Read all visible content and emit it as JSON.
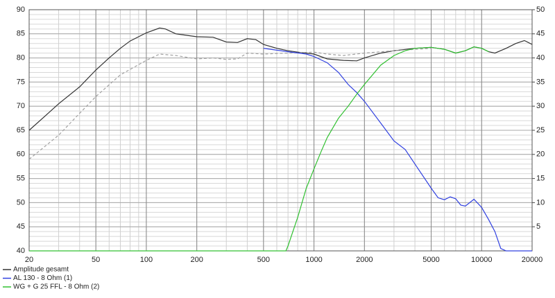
{
  "chart_data": {
    "type": "line",
    "xscale": "log",
    "grid": true,
    "legend": "bottom-left",
    "xlim": [
      20,
      20000
    ],
    "xticks": [
      20,
      50,
      100,
      200,
      500,
      1000,
      2000,
      5000,
      10000,
      20000
    ],
    "ylim": [
      40,
      90
    ],
    "yticks": [
      40,
      45,
      50,
      55,
      60,
      65,
      70,
      75,
      80,
      85,
      90
    ],
    "y2lim": [
      0,
      50
    ],
    "y2ticks": [
      5,
      10,
      15,
      20,
      25,
      30,
      35,
      40,
      45,
      50
    ],
    "series": [
      {
        "name": "Amplitude gesamt",
        "color": "#333333",
        "x": [
          20,
          25,
          30,
          40,
          50,
          60,
          70,
          80,
          100,
          120,
          130,
          150,
          200,
          250,
          300,
          350,
          400,
          450,
          500,
          600,
          700,
          800,
          1000,
          1200,
          1500,
          1800,
          2000,
          2500,
          3000,
          4000,
          5000,
          6000,
          7000,
          8000,
          9000,
          10000,
          11000,
          12000,
          14000,
          16000,
          18000,
          20000
        ],
        "values": [
          65,
          68,
          70.5,
          74,
          77.5,
          80,
          82,
          83.5,
          85.2,
          86.2,
          86,
          85,
          84.4,
          84.3,
          83.3,
          83.2,
          84,
          83.8,
          82.8,
          82,
          81.5,
          81.2,
          80.8,
          79.8,
          79.5,
          79.4,
          80,
          81,
          81.5,
          82,
          82.2,
          81.8,
          81,
          81.5,
          82.3,
          82,
          81.3,
          81,
          82,
          83,
          83.6,
          82.8
        ]
      },
      {
        "color": "#a0a0a0",
        "dashed": true,
        "x": [
          20,
          30,
          40,
          50,
          70,
          100,
          120,
          150,
          200,
          250,
          300,
          350,
          400,
          500,
          700,
          1000,
          1200,
          1500,
          2000,
          3000,
          5000
        ],
        "values": [
          59,
          64,
          68.5,
          72,
          76.5,
          79.5,
          80.8,
          80.5,
          79.8,
          80,
          79.7,
          79.8,
          81,
          80.8,
          81,
          81.2,
          80.8,
          80.5,
          81,
          81.5,
          82
        ]
      },
      {
        "name": "AL 130 - 8 Ohm (1)",
        "color": "#3040e0",
        "x": [
          500,
          700,
          900,
          1000,
          1200,
          1400,
          1600,
          1800,
          2000,
          2500,
          3000,
          3500,
          4000,
          5000,
          5500,
          6000,
          6500,
          7000,
          7500,
          8000,
          9000,
          10000,
          11000,
          12000,
          13000,
          14000,
          20000
        ],
        "values": [
          82,
          81.3,
          80.8,
          80.3,
          79,
          77,
          74.5,
          72.8,
          71,
          66.5,
          62.8,
          61,
          58,
          53,
          51,
          50.6,
          51.2,
          50.8,
          49.5,
          49.3,
          50.7,
          49,
          46.5,
          44,
          40.5,
          40,
          40
        ]
      },
      {
        "name": "WG + G 25 FFL - 8 Ohm (2)",
        "color": "#30c030",
        "x": [
          20,
          680,
          700,
          800,
          900,
          1000,
          1100,
          1200,
          1400,
          1600,
          1800,
          2000,
          2500,
          3000,
          3500,
          4000,
          5000,
          6000,
          7000,
          8000,
          9000,
          10000,
          11000
        ],
        "values": [
          40,
          40,
          41,
          47,
          53,
          57,
          60.5,
          63.5,
          67.5,
          70,
          72.5,
          74.5,
          78.5,
          80.5,
          81.5,
          82,
          82.2,
          81.8,
          81,
          81.5,
          82.3,
          82,
          81.3
        ]
      }
    ]
  }
}
